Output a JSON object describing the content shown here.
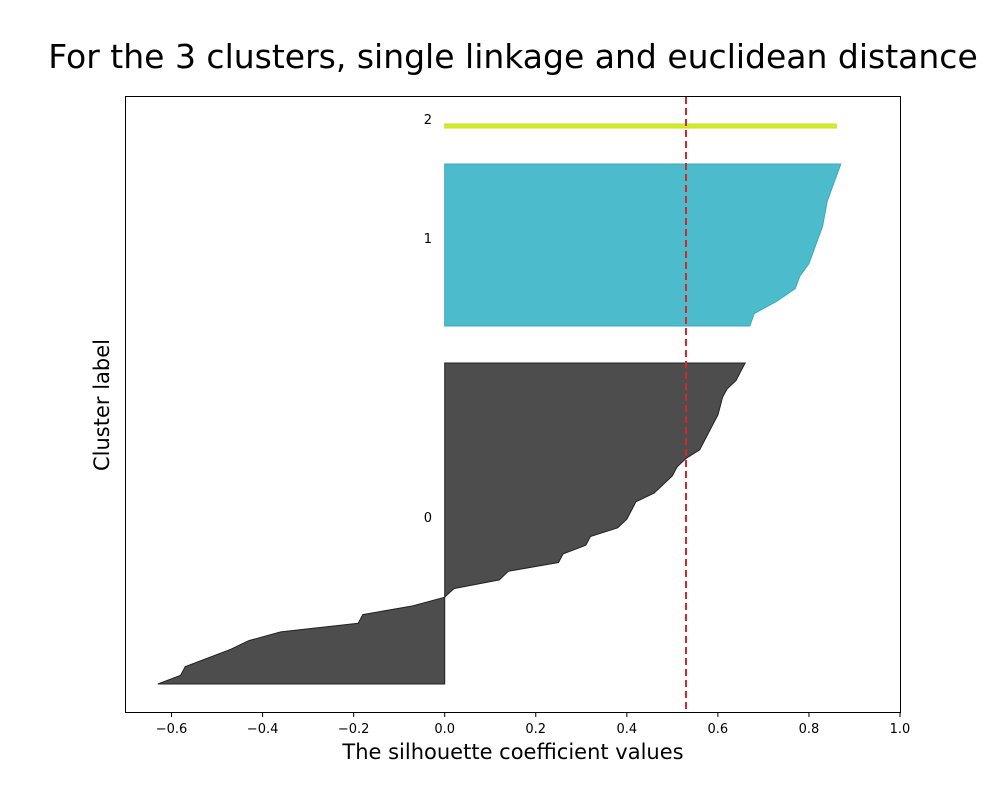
{
  "chart_data": {
    "type": "area",
    "title": "For the 3 clusters, single linkage and euclidean distance",
    "xlabel": "The silhouette coefficient values",
    "ylabel": "Cluster label",
    "xlim": [
      -0.7,
      1.0
    ],
    "xticks": [
      -0.6,
      -0.4,
      -0.2,
      0.0,
      0.2,
      0.4,
      0.6,
      0.8,
      1.0
    ],
    "xtick_labels": [
      "−0.6",
      "−0.4",
      "−0.2",
      "0.0",
      "0.2",
      "0.4",
      "0.6",
      "0.8",
      "1.0"
    ],
    "average_silhouette": 0.53,
    "average_line_color": "#d62728",
    "grid": false,
    "clusters": [
      {
        "label": "0",
        "color": "#4d4d4d",
        "edge_color": "#222222",
        "sorted_values_ascending": [
          -0.63,
          -0.58,
          -0.57,
          -0.52,
          -0.47,
          -0.43,
          -0.36,
          -0.19,
          -0.18,
          -0.07,
          0.0,
          0.02,
          0.12,
          0.14,
          0.25,
          0.26,
          0.31,
          0.32,
          0.38,
          0.4,
          0.41,
          0.42,
          0.46,
          0.48,
          0.5,
          0.51,
          0.53,
          0.56,
          0.57,
          0.58,
          0.59,
          0.6,
          0.605,
          0.61,
          0.62,
          0.64,
          0.65,
          0.66
        ]
      },
      {
        "label": "1",
        "color": "#4cbccc",
        "edge_color": "#3aaab9",
        "sorted_values_ascending": [
          0.67,
          0.68,
          0.73,
          0.77,
          0.78,
          0.8,
          0.81,
          0.82,
          0.83,
          0.835,
          0.84,
          0.85,
          0.86,
          0.87
        ]
      },
      {
        "label": "2",
        "color": "#d4ea2c",
        "edge_color": "#c8de20",
        "sorted_values_ascending": [
          0.85,
          0.86
        ]
      }
    ]
  }
}
